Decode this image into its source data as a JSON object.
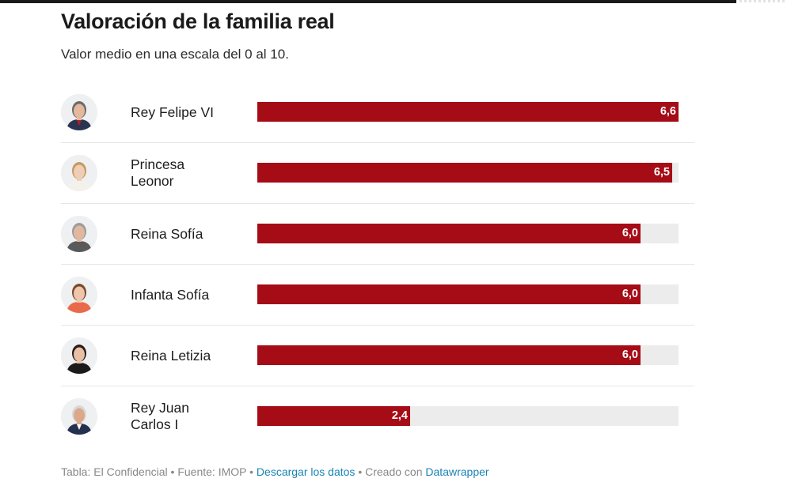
{
  "header": {
    "title": "Valoración de la familia real",
    "subtitle": "Valor medio en una escala del 0 al 10."
  },
  "chart_data": {
    "type": "bar",
    "orientation": "horizontal",
    "title": "Valoración de la familia real",
    "subtitle": "Valor medio en una escala del 0 al 10.",
    "categories": [
      "Rey Felipe VI",
      "Princesa Leonor",
      "Reina Sofía",
      "Infanta Sofía",
      "Reina Letizia",
      "Rey Juan Carlos I"
    ],
    "values": [
      6.6,
      6.5,
      6.0,
      6.0,
      6.0,
      2.4
    ],
    "value_labels": [
      "6,6",
      "6,5",
      "6,0",
      "6,0",
      "6,0",
      "2,4"
    ],
    "xlim": [
      0,
      6.6
    ],
    "colors": {
      "bar": "#a50c16",
      "track": "#ececec"
    }
  },
  "rows": [
    {
      "name_lines": [
        "Rey Felipe VI"
      ],
      "photo": "king-felipe-portrait"
    },
    {
      "name_lines": [
        "Princesa",
        "Leonor"
      ],
      "photo": "princess-leonor-portrait"
    },
    {
      "name_lines": [
        "Reina Sofía"
      ],
      "photo": "queen-sofia-portrait"
    },
    {
      "name_lines": [
        "Infanta Sofía"
      ],
      "photo": "infanta-sofia-portrait"
    },
    {
      "name_lines": [
        "Reina Letizia"
      ],
      "photo": "queen-letizia-portrait"
    },
    {
      "name_lines": [
        "Rey Juan",
        "Carlos I"
      ],
      "photo": "king-juan-carlos-portrait"
    }
  ],
  "footer": {
    "table_credit": "Tabla: El Confidencial",
    "sep1": " • ",
    "source": "Fuente: IMOP",
    "sep2": " • ",
    "download_link": "Descargar los datos",
    "sep3": " • ",
    "created_with": "Creado con ",
    "tool_link": "Datawrapper",
    "link_color": "#1a84b5"
  }
}
